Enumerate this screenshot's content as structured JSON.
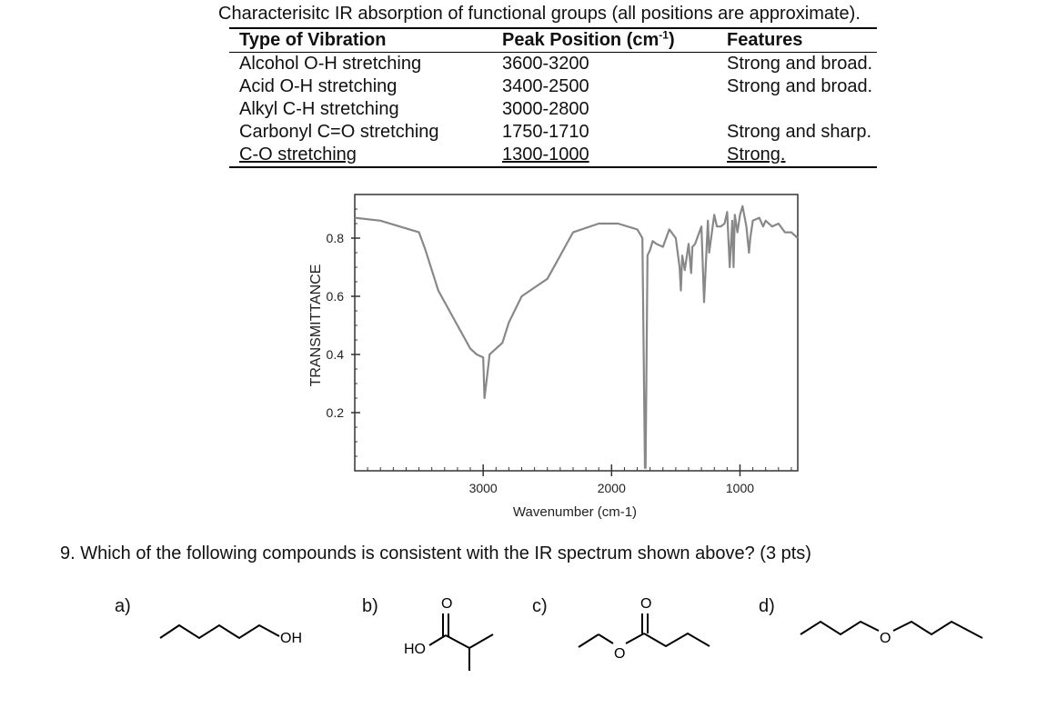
{
  "table": {
    "caption": "Characterisitc IR absorption of functional groups (all positions are approximate).",
    "headers": [
      "Type of Vibration",
      "Peak Position (cm",
      "-1",
      ")",
      "Features"
    ],
    "rows": [
      [
        "Alcohol O-H stretching",
        "3600-3200",
        "Strong and broad."
      ],
      [
        "Acid O-H stretching",
        "3400-2500",
        "Strong and broad."
      ],
      [
        "Alkyl C-H stretching",
        "3000-2800",
        ""
      ],
      [
        "Carbonyl C=O stretching",
        "1750-1710",
        "Strong and sharp."
      ],
      [
        "C-O stretching",
        "1300-1000",
        "Strong."
      ]
    ]
  },
  "chart_data": {
    "type": "line",
    "ylabel": "TRANSMITTANCE",
    "xlabel": "Wavenumber (cm-1)",
    "xlim": [
      4000,
      550
    ],
    "ylim": [
      0.0,
      0.95
    ],
    "xticks": [
      3000,
      2000,
      1000
    ],
    "xticklabels": [
      "3000",
      "2000",
      "1000"
    ],
    "yticks": [
      0.2,
      0.4,
      0.6,
      0.8
    ],
    "yticklabels": [
      "0.2",
      "0.4",
      "0.6",
      "0.8"
    ],
    "line_color": "#888888",
    "series": [
      {
        "x": [
          4000,
          3800,
          3650,
          3500,
          3450,
          3350,
          3200,
          3100,
          3050,
          3000,
          2990,
          2960,
          2950,
          2900,
          2850,
          2800,
          2700,
          2600,
          2500,
          2400,
          2350,
          2300,
          2100,
          2000,
          1950,
          1800,
          1760,
          1740,
          1735,
          1720,
          1700,
          1680,
          1650,
          1600,
          1550,
          1500,
          1470,
          1460,
          1450,
          1430,
          1400,
          1380,
          1370,
          1350,
          1300,
          1280,
          1250,
          1240,
          1200,
          1180,
          1150,
          1120,
          1100,
          1080,
          1060,
          1050,
          1040,
          1020,
          1000,
          980,
          950,
          930,
          920,
          900,
          850,
          820,
          800,
          750,
          700,
          650,
          600,
          550
        ],
        "y": [
          0.87,
          0.86,
          0.84,
          0.82,
          0.76,
          0.62,
          0.5,
          0.42,
          0.4,
          0.39,
          0.25,
          0.36,
          0.4,
          0.42,
          0.44,
          0.51,
          0.6,
          0.63,
          0.66,
          0.74,
          0.78,
          0.82,
          0.85,
          0.85,
          0.85,
          0.83,
          0.8,
          0.01,
          0.01,
          0.74,
          0.76,
          0.79,
          0.78,
          0.77,
          0.83,
          0.8,
          0.7,
          0.62,
          0.74,
          0.69,
          0.78,
          0.68,
          0.77,
          0.78,
          0.84,
          0.58,
          0.86,
          0.75,
          0.88,
          0.84,
          0.84,
          0.85,
          0.89,
          0.7,
          0.86,
          0.7,
          0.88,
          0.82,
          0.88,
          0.91,
          0.84,
          0.75,
          0.8,
          0.86,
          0.87,
          0.84,
          0.86,
          0.84,
          0.85,
          0.82,
          0.82,
          0.8
        ]
      }
    ]
  },
  "question": {
    "text": "9.  Which of the following compounds is consistent with the IR spectrum shown above? (3 pts)",
    "options": [
      "a)",
      "b)",
      "c)",
      "d)"
    ]
  },
  "molecules": {
    "a_label": "OH",
    "b_label_oh": "HO",
    "b_label_o": "O",
    "c_label_o1": "O",
    "c_label_o2": "O",
    "d_label_o": "O"
  }
}
